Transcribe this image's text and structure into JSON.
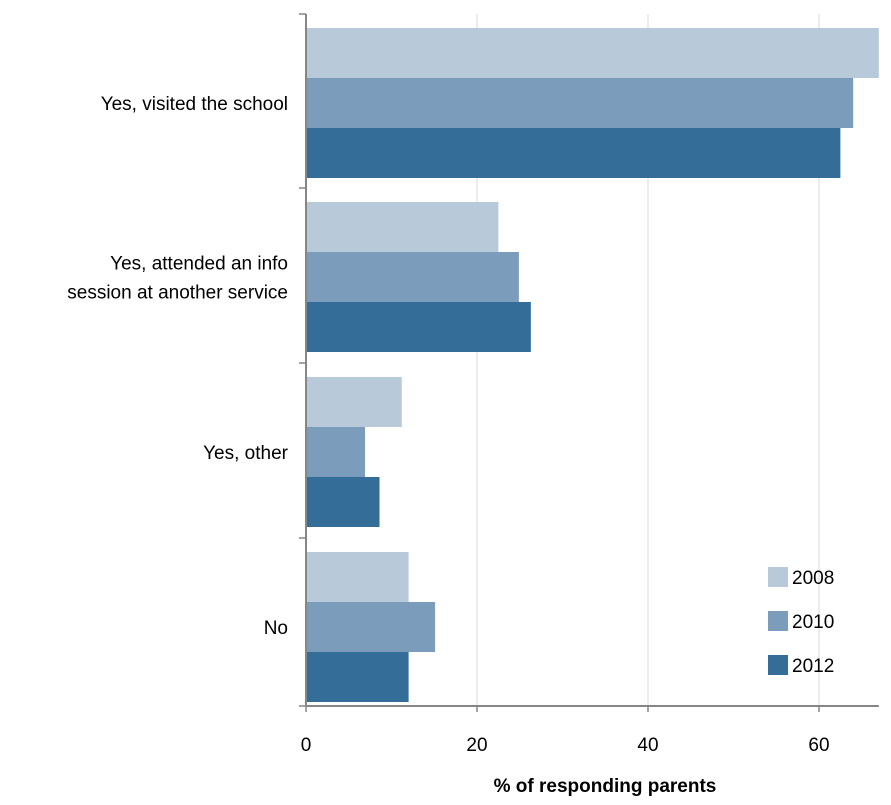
{
  "chart_data": {
    "type": "bar",
    "orientation": "horizontal",
    "categories": [
      [
        "Yes, visited the school"
      ],
      [
        "Yes, attended an info",
        "session at another service"
      ],
      [
        "Yes, other"
      ],
      [
        "No"
      ]
    ],
    "series": [
      {
        "name": "2008",
        "color": "#b8cad9",
        "values": [
          67,
          22.5,
          11.2,
          12
        ]
      },
      {
        "name": "2010",
        "color": "#7b9cba",
        "values": [
          64,
          24.9,
          6.9,
          15.1
        ]
      },
      {
        "name": "2012",
        "color": "#346e98",
        "values": [
          62.5,
          26.3,
          8.6,
          12
        ]
      }
    ],
    "xlabel": "% of  responding parents",
    "xlim": [
      0,
      67
    ],
    "xticks": [
      0,
      20,
      40,
      60
    ],
    "grid": "vertical",
    "legend_position": "bottom-right"
  }
}
